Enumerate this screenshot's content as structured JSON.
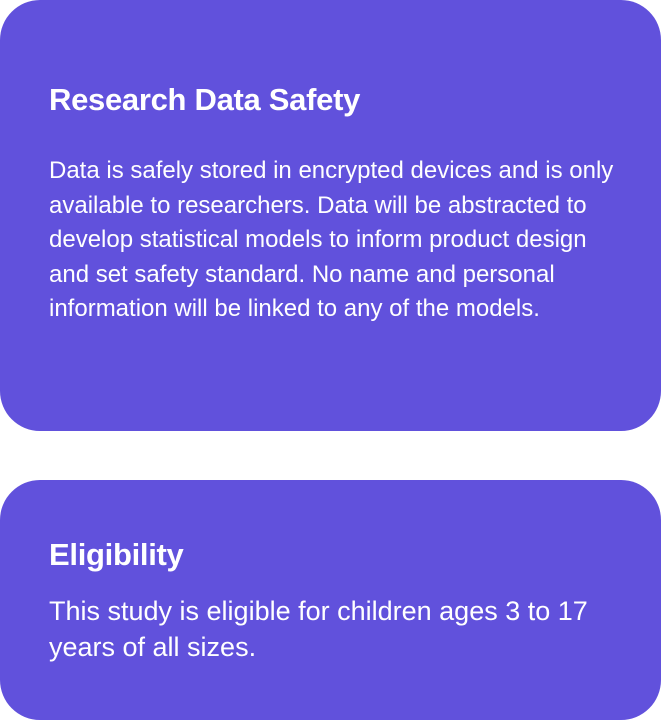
{
  "research_safety": {
    "title": "Research Data Safety",
    "body": "Data is safely stored in encrypted devices and is only available to researchers. Data will be abstracted to develop statistical models to inform product design and set safety standard. No name and personal information will be linked to any of the models."
  },
  "eligibility": {
    "title": "Eligibility",
    "body": "This study is eligible for children ages 3 to 17 years of all sizes."
  },
  "colors": {
    "card_background": "#6151dc",
    "text": "#ffffff",
    "page_background": "#ffffff"
  }
}
